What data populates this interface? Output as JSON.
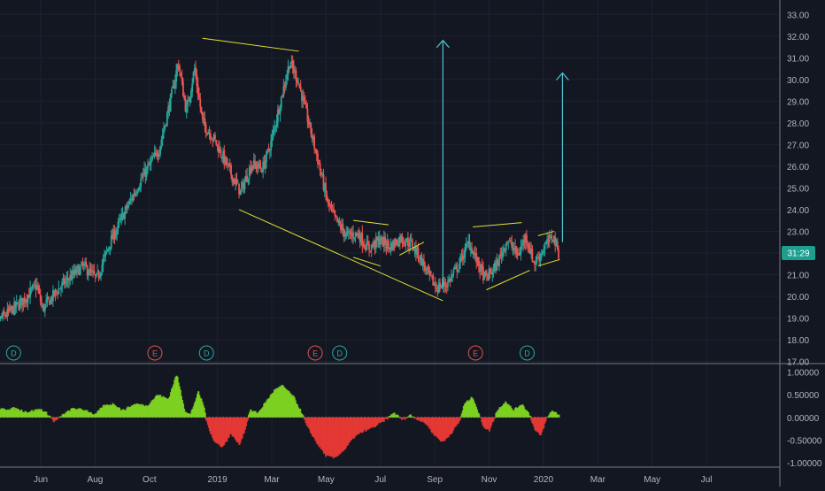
{
  "colors": {
    "background": "#131722",
    "axis_line": "#787b86",
    "axis_text": "#b2b5be",
    "grid": "#1e2230",
    "candle_up": "#26a69a",
    "candle_down": "#ef5350",
    "osc_pos": "#7ed321",
    "osc_neg": "#e53935",
    "trend": "#e5e234",
    "arrow": "#4ec3d0",
    "price_label_bg": "#1e9e8e",
    "event_d": "#2aa7a1",
    "event_e": "#d9534f"
  },
  "chart_data": [
    {
      "type": "candlestick",
      "y_axis": {
        "ylim": [
          16.9,
          33.5
        ],
        "ticks": [
          "17.00",
          "18.00",
          "19.00",
          "20.00",
          "21.00",
          "22.00",
          "23.00",
          "24.00",
          "25.00",
          "26.00",
          "27.00",
          "28.00",
          "29.00",
          "30.00",
          "31.00",
          "32.00",
          "33.00"
        ],
        "tick_values": [
          17,
          18,
          19,
          20,
          21,
          22,
          23,
          24,
          25,
          26,
          27,
          28,
          29,
          30,
          31,
          32,
          33
        ]
      },
      "x_axis": {
        "xlim": [
          0,
          28.7
        ],
        "tick_labels": [
          "Jun",
          "Aug",
          "Oct",
          "2019",
          "Mar",
          "May",
          "Jul",
          "Sep",
          "Nov",
          "2020",
          "Mar",
          "May",
          "Jul"
        ],
        "tick_values": [
          1.5,
          3.5,
          5.5,
          8,
          10,
          12,
          14,
          16,
          18,
          20,
          22,
          24,
          26
        ]
      },
      "current_price_label": "31:29",
      "current_price": 22.0,
      "price_path": [
        [
          -0.4,
          18.5
        ],
        [
          0.8,
          19.7
        ],
        [
          1.4,
          20.5
        ],
        [
          1.6,
          19.4
        ],
        [
          2.3,
          20.5
        ],
        [
          3.1,
          21.4
        ],
        [
          3.6,
          20.8
        ],
        [
          4.1,
          22.5
        ],
        [
          4.6,
          23.8
        ],
        [
          5.2,
          25.3
        ],
        [
          5.9,
          26.8
        ],
        [
          6.4,
          29.5
        ],
        [
          6.6,
          30.8
        ],
        [
          6.9,
          28.5
        ],
        [
          7.2,
          30.5
        ],
        [
          7.5,
          28.0
        ],
        [
          7.9,
          27.3
        ],
        [
          8.3,
          26.3
        ],
        [
          8.6,
          25.5
        ],
        [
          8.9,
          24.8
        ],
        [
          9.3,
          26.1
        ],
        [
          9.7,
          25.9
        ],
        [
          10.0,
          27.0
        ],
        [
          10.4,
          29.2
        ],
        [
          10.7,
          30.8
        ],
        [
          11.0,
          30.0
        ],
        [
          11.3,
          28.5
        ],
        [
          11.7,
          26.5
        ],
        [
          12.1,
          24.3
        ],
        [
          12.4,
          23.5
        ],
        [
          12.8,
          22.8
        ],
        [
          13.2,
          22.9
        ],
        [
          13.6,
          22.2
        ],
        [
          14.0,
          22.6
        ],
        [
          14.4,
          22.3
        ],
        [
          14.8,
          22.7
        ],
        [
          15.2,
          22.4
        ],
        [
          15.5,
          21.8
        ],
        [
          15.8,
          21.0
        ],
        [
          16.1,
          20.4
        ],
        [
          16.5,
          20.6
        ],
        [
          16.9,
          21.4
        ],
        [
          17.3,
          22.5
        ],
        [
          17.6,
          21.6
        ],
        [
          17.9,
          20.8
        ],
        [
          18.3,
          21.4
        ],
        [
          18.7,
          22.6
        ],
        [
          19.1,
          21.9
        ],
        [
          19.4,
          22.8
        ],
        [
          19.7,
          21.5
        ],
        [
          20.1,
          22.3
        ],
        [
          20.4,
          22.8
        ],
        [
          20.6,
          22.0
        ]
      ],
      "annotations": {
        "trend_lines": [
          [
            [
              7.45,
              31.9
            ],
            [
              11.0,
              31.3
            ]
          ],
          [
            [
              8.8,
              24.0
            ],
            [
              16.3,
              19.8
            ]
          ],
          [
            [
              13.0,
              23.5
            ],
            [
              14.3,
              23.3
            ]
          ],
          [
            [
              13.0,
              21.8
            ],
            [
              14.0,
              21.4
            ]
          ],
          [
            [
              14.7,
              21.9
            ],
            [
              15.6,
              22.5
            ]
          ],
          [
            [
              17.4,
              23.2
            ],
            [
              19.2,
              23.4
            ]
          ],
          [
            [
              17.9,
              20.3
            ],
            [
              19.5,
              21.2
            ]
          ],
          [
            [
              19.8,
              22.8
            ],
            [
              20.4,
              23.0
            ]
          ],
          [
            [
              19.8,
              21.4
            ],
            [
              20.6,
              21.7
            ]
          ]
        ],
        "arrows": [
          [
            [
              16.3,
              20.4
            ],
            [
              16.3,
              31.8
            ]
          ],
          [
            [
              20.7,
              22.5
            ],
            [
              20.7,
              30.3
            ]
          ]
        ]
      },
      "events": [
        {
          "label": "D",
          "x": 0.5
        },
        {
          "label": "E",
          "x": 5.7
        },
        {
          "label": "D",
          "x": 7.6
        },
        {
          "label": "E",
          "x": 11.6
        },
        {
          "label": "D",
          "x": 12.5
        },
        {
          "label": "E",
          "x": 17.5
        },
        {
          "label": "D",
          "x": 19.4
        }
      ]
    },
    {
      "type": "histogram",
      "ylim": [
        -1.1,
        1.15
      ],
      "ticks": [
        "1.00000",
        "0.50000",
        "0.00000",
        "-0.50000",
        "-1.00000"
      ],
      "tick_values": [
        1.0,
        0.5,
        0.0,
        -0.5,
        -1.0
      ],
      "x_range": [
        -0.4,
        20.6
      ],
      "path": [
        [
          -0.4,
          0.15
        ],
        [
          0.5,
          0.2
        ],
        [
          1.0,
          0.12
        ],
        [
          1.5,
          0.18
        ],
        [
          1.8,
          0.05
        ],
        [
          2.0,
          -0.1
        ],
        [
          2.3,
          0.05
        ],
        [
          2.7,
          0.2
        ],
        [
          3.2,
          0.15
        ],
        [
          3.5,
          0.05
        ],
        [
          3.8,
          0.25
        ],
        [
          4.2,
          0.3
        ],
        [
          4.5,
          0.15
        ],
        [
          5.0,
          0.3
        ],
        [
          5.4,
          0.25
        ],
        [
          5.8,
          0.5
        ],
        [
          6.2,
          0.4
        ],
        [
          6.5,
          0.95
        ],
        [
          6.8,
          0.15
        ],
        [
          7.0,
          0.05
        ],
        [
          7.3,
          0.55
        ],
        [
          7.5,
          0.25
        ],
        [
          7.6,
          -0.1
        ],
        [
          7.9,
          -0.55
        ],
        [
          8.2,
          -0.65
        ],
        [
          8.5,
          -0.35
        ],
        [
          8.8,
          -0.6
        ],
        [
          9.0,
          -0.3
        ],
        [
          9.2,
          0.15
        ],
        [
          9.5,
          0.1
        ],
        [
          9.8,
          0.35
        ],
        [
          10.1,
          0.6
        ],
        [
          10.4,
          0.7
        ],
        [
          10.8,
          0.45
        ],
        [
          11.1,
          0.1
        ],
        [
          11.3,
          -0.2
        ],
        [
          11.7,
          -0.6
        ],
        [
          12.0,
          -0.85
        ],
        [
          12.3,
          -0.9
        ],
        [
          12.7,
          -0.7
        ],
        [
          13.0,
          -0.45
        ],
        [
          13.4,
          -0.3
        ],
        [
          13.8,
          -0.2
        ],
        [
          14.2,
          -0.05
        ],
        [
          14.5,
          0.1
        ],
        [
          14.8,
          -0.05
        ],
        [
          15.1,
          0.05
        ],
        [
          15.4,
          -0.05
        ],
        [
          15.7,
          -0.15
        ],
        [
          16.0,
          -0.4
        ],
        [
          16.3,
          -0.55
        ],
        [
          16.6,
          -0.35
        ],
        [
          16.9,
          -0.1
        ],
        [
          17.1,
          0.3
        ],
        [
          17.4,
          0.45
        ],
        [
          17.6,
          0.1
        ],
        [
          17.8,
          -0.2
        ],
        [
          18.0,
          -0.3
        ],
        [
          18.3,
          0.15
        ],
        [
          18.6,
          0.35
        ],
        [
          18.9,
          0.15
        ],
        [
          19.2,
          0.3
        ],
        [
          19.5,
          0.05
        ],
        [
          19.7,
          -0.3
        ],
        [
          19.9,
          -0.4
        ],
        [
          20.1,
          -0.05
        ],
        [
          20.3,
          0.15
        ],
        [
          20.6,
          0.05
        ]
      ]
    }
  ]
}
